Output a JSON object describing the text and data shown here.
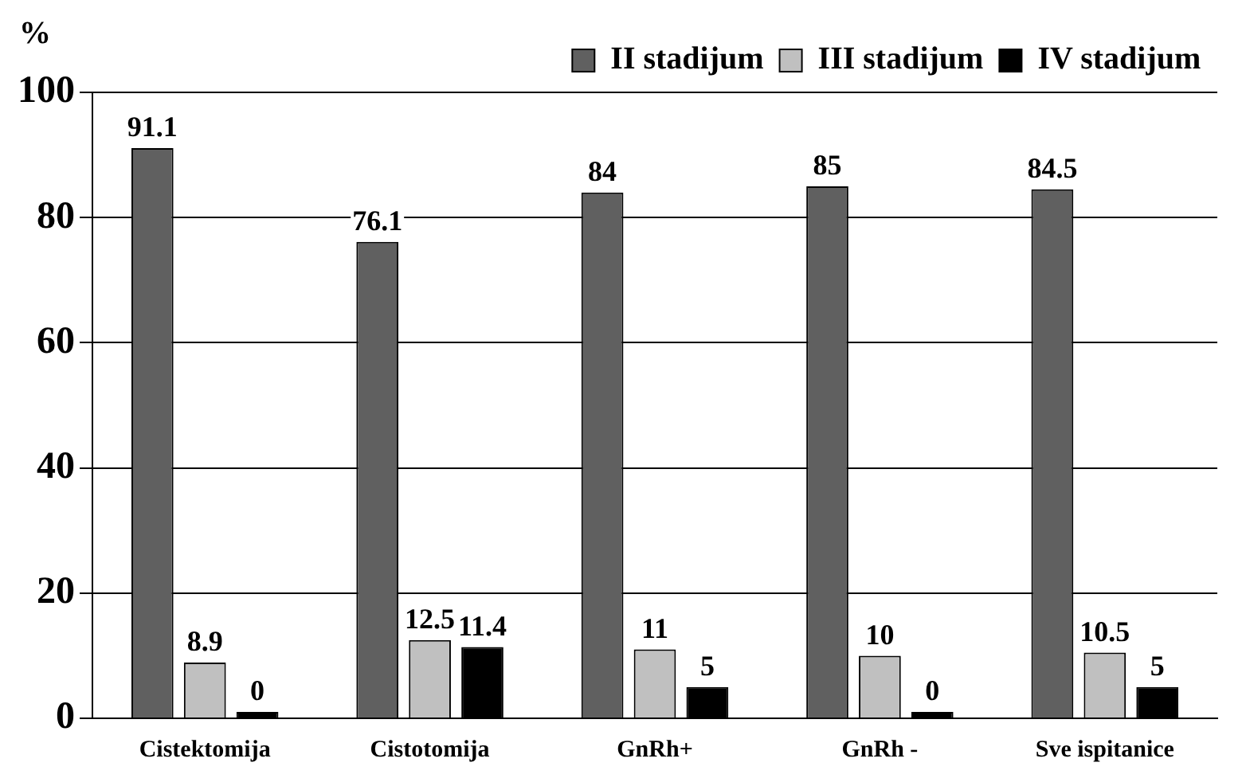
{
  "chart_data": {
    "type": "bar",
    "ylabel": "%",
    "categories": [
      "Cistektomija",
      "Cistotomija",
      "GnRh+",
      "GnRh -",
      "Sve ispitanice"
    ],
    "series": [
      {
        "name": "II stadijum",
        "color": "#606060",
        "values": [
          91.1,
          76.1,
          84,
          85,
          84.5
        ]
      },
      {
        "name": "III stadijum",
        "color": "#c0c0c0",
        "values": [
          8.9,
          12.5,
          11,
          10,
          10.5
        ]
      },
      {
        "name": "IV stadijum",
        "color": "#000000",
        "values": [
          0,
          11.4,
          5,
          0,
          5
        ]
      }
    ],
    "ylim": [
      0,
      100
    ],
    "yticks": [
      0,
      20,
      40,
      60,
      80,
      100
    ],
    "grid": "y",
    "legend": "top right",
    "data_labels": true
  }
}
